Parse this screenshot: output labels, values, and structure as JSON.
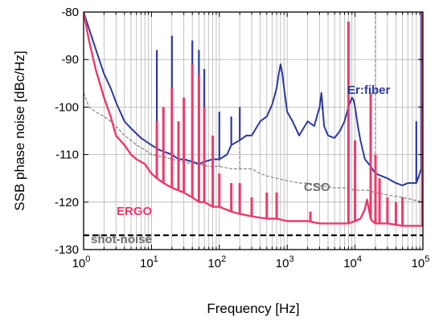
{
  "chart_data": {
    "type": "line",
    "title": "",
    "xlabel": "Frequency [Hz]",
    "ylabel": "SSB  phase noise [dBc/Hz]",
    "xscale": "log",
    "xlim": [
      1,
      100000
    ],
    "ylim": [
      -130,
      -80
    ],
    "grid": true,
    "x_ticks": [
      {
        "base": "10",
        "exp": "0"
      },
      {
        "base": "10",
        "exp": "1"
      },
      {
        "base": "10",
        "exp": "2"
      },
      {
        "base": "10",
        "exp": "3"
      },
      {
        "base": "10",
        "exp": "4"
      },
      {
        "base": "10",
        "exp": "5"
      }
    ],
    "y_ticks": [
      "-80",
      "-90",
      "-100",
      "-110",
      "-120",
      "-130"
    ],
    "annotations": {
      "erfiber": "Er:fiber",
      "cso": "CSO",
      "ergo": "ERGO",
      "shotnoise": "shot-noise"
    },
    "colors": {
      "erfiber": "#2b3a9c",
      "ergo": "#ec3a6b",
      "cso": "#6e6e6e",
      "shotnoise": "#000000",
      "grid": "#b4b4b4"
    },
    "series": [
      {
        "name": "Er:fiber",
        "x": [
          1,
          1.3,
          1.7,
          2,
          2.5,
          3,
          4,
          5,
          7,
          10,
          13,
          16,
          20,
          25,
          30,
          40,
          50,
          60,
          80,
          100,
          130,
          150,
          200,
          250,
          300,
          400,
          500,
          600,
          700,
          750,
          800,
          850,
          900,
          1000,
          1200,
          1500,
          2000,
          2500,
          3000,
          3200,
          3500,
          4000,
          5000,
          6000,
          7000,
          8000,
          8500,
          9000,
          9500,
          10000,
          11000,
          12000,
          14000,
          16000,
          18000,
          20000,
          30000,
          40000,
          50000,
          60000,
          80000,
          90000,
          100000
        ],
        "y": [
          -80,
          -85,
          -90,
          -93,
          -96,
          -99,
          -103,
          -104.5,
          -106.5,
          -108,
          -109,
          -109.5,
          -110,
          -111,
          -111,
          -111.5,
          -112,
          -111.5,
          -111,
          -111,
          -110,
          -108,
          -107,
          -106,
          -106,
          -103,
          -102,
          -99.5,
          -96,
          -93,
          -91,
          -93,
          -96,
          -101,
          -103,
          -106,
          -103,
          -104,
          -100,
          -97,
          -104,
          -106,
          -106.5,
          -105,
          -103,
          -100,
          -99,
          -98,
          -98.5,
          -100,
          -104,
          -107,
          -111,
          -112,
          -113,
          -114,
          -115,
          -116,
          -116.5,
          -116,
          -116,
          -114,
          -112
        ]
      },
      {
        "name": "ERGO",
        "x": [
          1,
          1.2,
          1.5,
          2,
          2.5,
          3,
          4,
          5,
          6,
          8,
          10,
          12,
          15,
          20,
          30,
          40,
          50,
          60,
          80,
          100,
          150,
          200,
          300,
          500,
          700,
          1000,
          1500,
          2000,
          3000,
          5000,
          7000,
          8000,
          10000,
          12000,
          14000,
          15000,
          16000,
          17000,
          18000,
          20000,
          30000,
          50000,
          70000,
          100000
        ],
        "y": [
          -80,
          -86,
          -92,
          -98,
          -102,
          -106,
          -108,
          -110,
          -111,
          -112,
          -114,
          -115,
          -116,
          -117,
          -118,
          -119,
          -120,
          -120,
          -121,
          -121,
          -122,
          -122.5,
          -123,
          -123.5,
          -123.5,
          -124,
          -124,
          -124,
          -124.5,
          -124.5,
          -124.5,
          -124.5,
          -124,
          -123.5,
          -121.5,
          -119.5,
          -121.5,
          -123.5,
          -124,
          -124.5,
          -124.5,
          -125,
          -125,
          -125
        ]
      },
      {
        "name": "CSO",
        "x": [
          1,
          1.2,
          1.5,
          2,
          2.5,
          3,
          4,
          5,
          6,
          8,
          10,
          15,
          20,
          30,
          40,
          50,
          70,
          100,
          150,
          200,
          300,
          400,
          500,
          700,
          1000,
          1500,
          2000,
          3000,
          5000,
          7000,
          10000,
          15000,
          20000,
          30000,
          50000,
          70000,
          100000
        ],
        "y": [
          -97,
          -100,
          -101,
          -102,
          -103,
          -104,
          -106,
          -107,
          -108,
          -109,
          -110,
          -110.5,
          -111,
          -111.5,
          -112,
          -112,
          -112.5,
          -112.5,
          -113,
          -113,
          -113,
          -114,
          -114.5,
          -115,
          -115.5,
          -116,
          -116,
          -116.5,
          -117,
          -117,
          -117.5,
          -117.5,
          -118,
          -118.5,
          -119,
          -119.5,
          -120
        ]
      },
      {
        "name": "shot-noise",
        "x": [
          1,
          100000
        ],
        "y": [
          -127,
          -127
        ]
      }
    ],
    "spurs": {
      "erfiber": [
        {
          "x": 12,
          "top": -88
        },
        {
          "x": 20,
          "top": -85
        },
        {
          "x": 40,
          "top": -86
        },
        {
          "x": 50,
          "top": -88
        },
        {
          "x": 60,
          "top": -92
        },
        {
          "x": 100,
          "top": -101
        },
        {
          "x": 150,
          "top": -102
        },
        {
          "x": 200,
          "top": -100
        },
        {
          "x": 3300,
          "top": -100.5
        },
        {
          "x": 80000,
          "top": -103
        },
        {
          "x": 95000,
          "top": -80
        }
      ],
      "ergo": [
        {
          "x": 12,
          "top": -103
        },
        {
          "x": 15,
          "top": -100
        },
        {
          "x": 20,
          "top": -96
        },
        {
          "x": 25,
          "top": -103
        },
        {
          "x": 30,
          "top": -98
        },
        {
          "x": 40,
          "top": -91
        },
        {
          "x": 50,
          "top": -93
        },
        {
          "x": 60,
          "top": -100
        },
        {
          "x": 80,
          "top": -106
        },
        {
          "x": 100,
          "top": -114
        },
        {
          "x": 150,
          "top": -116
        },
        {
          "x": 200,
          "top": -116
        },
        {
          "x": 300,
          "top": -119
        },
        {
          "x": 500,
          "top": -118
        },
        {
          "x": 700,
          "top": -118
        },
        {
          "x": 2200,
          "top": -122
        },
        {
          "x": 8000,
          "top": -82
        },
        {
          "x": 10000,
          "top": -107
        },
        {
          "x": 17000,
          "top": -97
        },
        {
          "x": 20000,
          "top": -110
        },
        {
          "x": 23000,
          "top": -115
        },
        {
          "x": 30000,
          "top": -119
        },
        {
          "x": 40000,
          "top": -120
        },
        {
          "x": 50000,
          "top": -119
        },
        {
          "x": 98000,
          "top": -80
        }
      ],
      "cso": [
        {
          "x": 15,
          "top": -103
        },
        {
          "x": 30,
          "top": -100
        },
        {
          "x": 50,
          "top": -95
        },
        {
          "x": 100,
          "top": -103
        },
        {
          "x": 200,
          "top": -104
        },
        {
          "x": 20000,
          "top": -80
        },
        {
          "x": 100000,
          "top": -80
        }
      ]
    }
  }
}
